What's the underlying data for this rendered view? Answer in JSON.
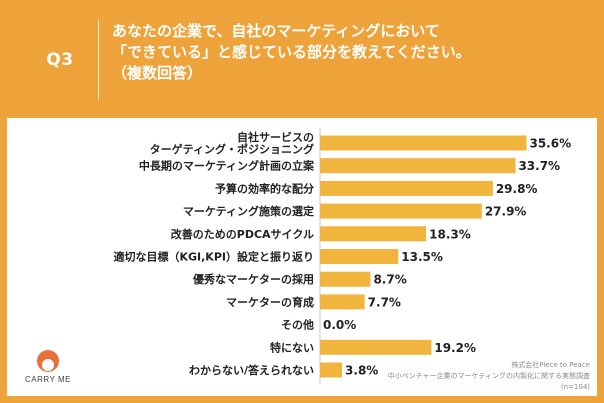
{
  "header": {
    "q_label": "Q3",
    "question_lines": [
      "あなたの企業で、自社のマーケティングにおいて",
      "「できている」と感じている部分を教えてください。",
      "（複数回答）"
    ]
  },
  "colors": {
    "header_bg": "#eea33a",
    "bar": "#f1b43c",
    "logo_mark": "#e8703a"
  },
  "chart_data": {
    "type": "bar",
    "orientation": "horizontal",
    "title": "あなたの企業で、自社のマーケティングにおいて「できている」と感じている部分を教えてください。（複数回答）",
    "unit": "%",
    "xlim": [
      0,
      40
    ],
    "categories": [
      [
        "自社サービスの",
        "ターゲティング・ポジショニング"
      ],
      [
        "中長期のマーケティング計画の立案"
      ],
      [
        "予算の効率的な配分"
      ],
      [
        "マーケティング施策の選定"
      ],
      [
        "改善のためのPDCAサイクル"
      ],
      [
        "適切な目標（KGI,KPI）設定と振り返り"
      ],
      [
        "優秀なマーケターの採用"
      ],
      [
        "マーケターの育成"
      ],
      [
        "その他"
      ],
      [
        "特にない"
      ],
      [
        "わからない/答えられない"
      ]
    ],
    "values": [
      35.6,
      33.7,
      29.8,
      27.9,
      18.3,
      13.5,
      8.7,
      7.7,
      0.0,
      19.2,
      3.8
    ],
    "value_labels": [
      "35.6%",
      "33.7%",
      "29.8%",
      "27.9%",
      "18.3%",
      "13.5%",
      "8.7%",
      "7.7%",
      "0.0%",
      "19.2%",
      "3.8%"
    ]
  },
  "brand": {
    "logo_text": "CARRY ME"
  },
  "source": {
    "lines": [
      "株式会社Piece to Peace",
      "中小ベンチャー企業のマーケティングの内製化に関する実態調査",
      "(n=104)"
    ]
  }
}
